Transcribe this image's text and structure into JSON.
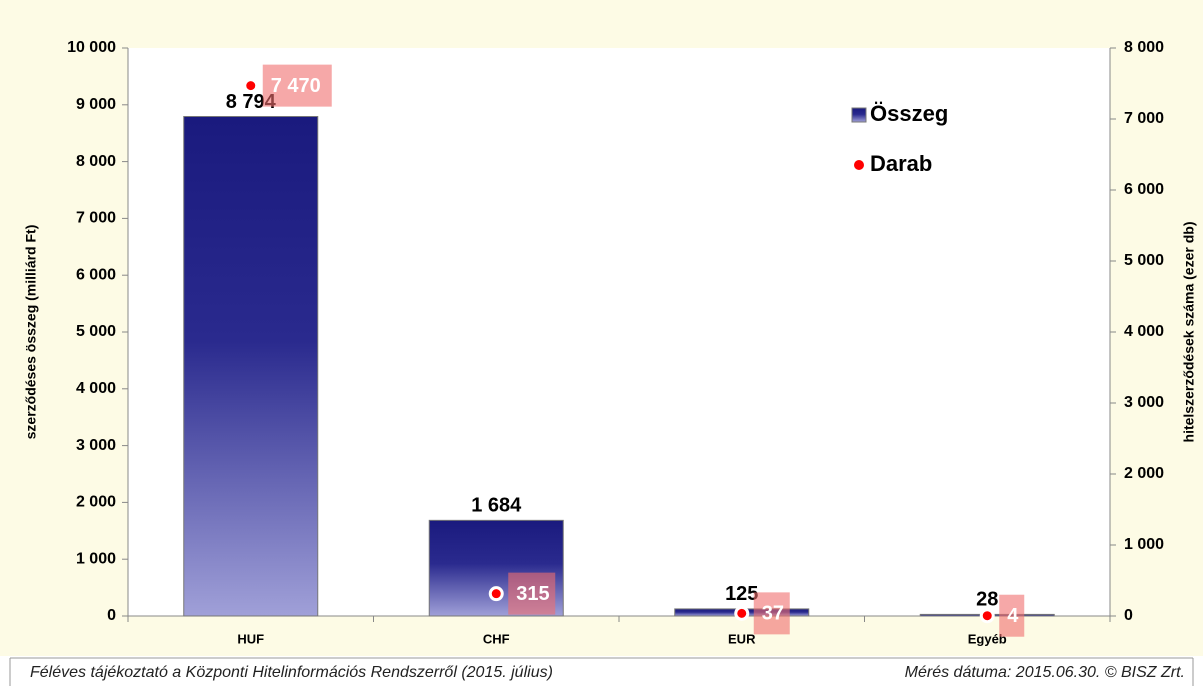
{
  "chart_data": {
    "type": "bar",
    "categories": [
      "HUF",
      "CHF",
      "EUR",
      "Egyéb"
    ],
    "series": [
      {
        "name": "Összeg",
        "color": "#1a1a7e",
        "values": [
          8794,
          1684,
          125,
          28
        ],
        "value_labels": [
          "8 794",
          "1 684",
          "125",
          "28"
        ]
      },
      {
        "name": "Darab",
        "type": "scatter",
        "axis": "y2",
        "color": "#ff0000",
        "values": [
          7470,
          315,
          37,
          4
        ],
        "value_labels": [
          "7 470",
          "315",
          "37",
          "4"
        ]
      }
    ],
    "ylabel": "szerződéses összeg (milliárd Ft)",
    "y2label": "hitelszerződések száma (ezer db)",
    "ylim": [
      0,
      10000
    ],
    "yticks": [
      {
        "value": 0,
        "label": "0"
      },
      {
        "value": 1000,
        "label": "1 000"
      },
      {
        "value": 2000,
        "label": "2 000"
      },
      {
        "value": 3000,
        "label": "3 000"
      },
      {
        "value": 4000,
        "label": "4 000"
      },
      {
        "value": 5000,
        "label": "5 000"
      },
      {
        "value": 6000,
        "label": "6 000"
      },
      {
        "value": 7000,
        "label": "7 000"
      },
      {
        "value": 8000,
        "label": "8 000"
      },
      {
        "value": 9000,
        "label": "9 000"
      },
      {
        "value": 10000,
        "label": "10 000"
      }
    ],
    "y2lim": [
      0,
      8000
    ],
    "y2ticks": [
      {
        "value": 0,
        "label": "0"
      },
      {
        "value": 1000,
        "label": "1 000"
      },
      {
        "value": 2000,
        "label": "2 000"
      },
      {
        "value": 3000,
        "label": "3 000"
      },
      {
        "value": 4000,
        "label": "4 000"
      },
      {
        "value": 5000,
        "label": "5 000"
      },
      {
        "value": 6000,
        "label": "6 000"
      },
      {
        "value": 7000,
        "label": "7 000"
      },
      {
        "value": 8000,
        "label": "8 000"
      }
    ],
    "footer_left": "Féléves tájékoztató a Központi Hitelinformációs Rendszerről (2015. július)",
    "footer_right": "Mérés dátuma: 2015.06.30. © BISZ Zrt."
  }
}
